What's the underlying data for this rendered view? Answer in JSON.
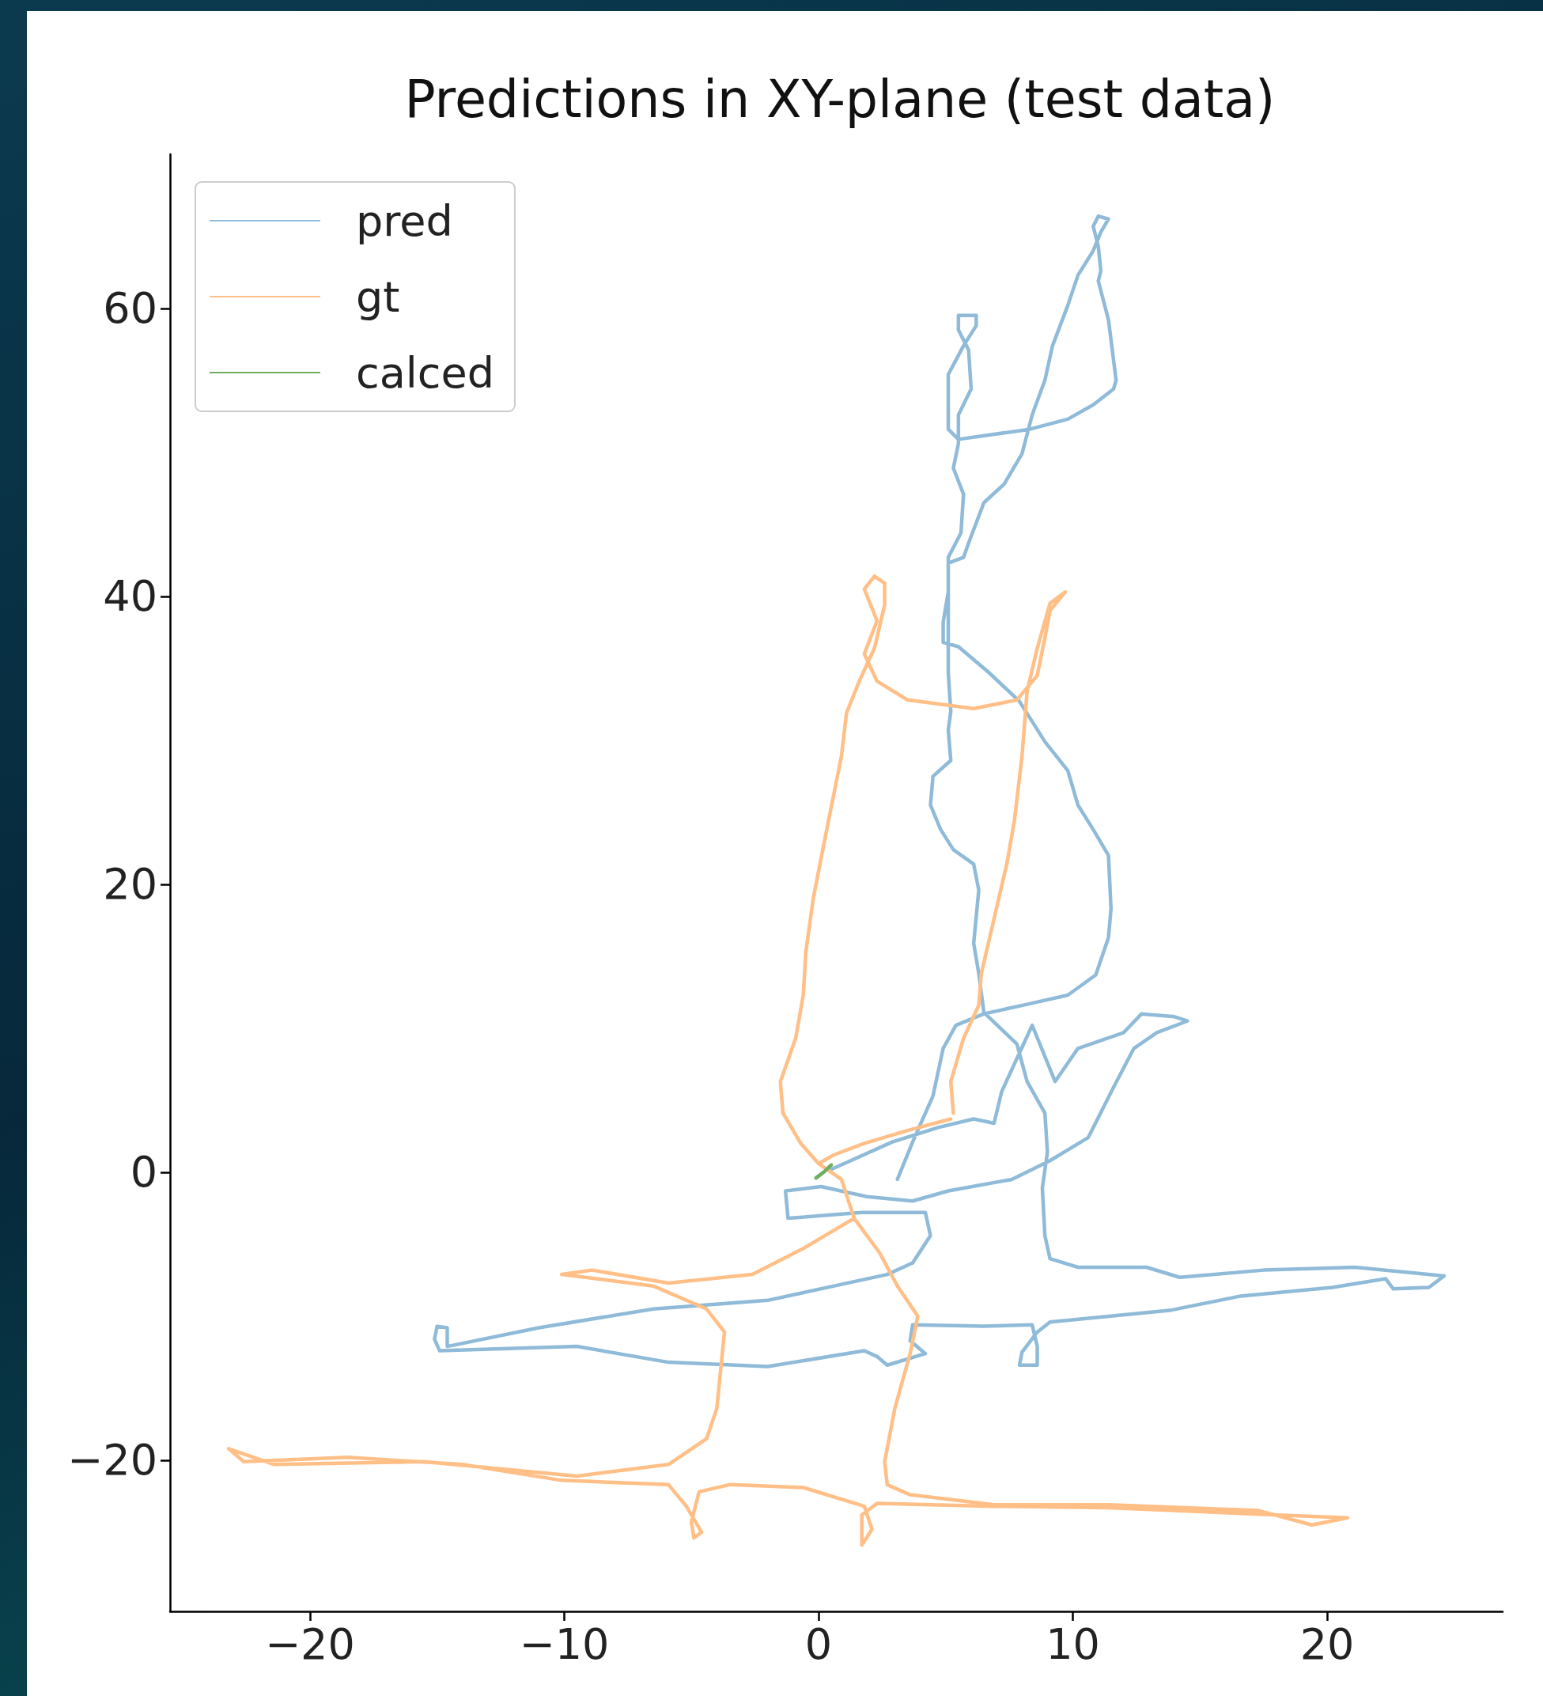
{
  "chart_data": {
    "type": "line",
    "title": "Predictions in XY-plane (test data)",
    "xlim": [
      -25.5,
      26.9
    ],
    "ylim": [
      -30.5,
      70.7
    ],
    "xticks": [
      {
        "value": -20,
        "label": "−20"
      },
      {
        "value": -10,
        "label": "−10"
      },
      0,
      10,
      20
    ],
    "yticks": [
      {
        "value": -20,
        "label": "−20"
      },
      0,
      20,
      40,
      60
    ],
    "legend": "top left",
    "series": [
      {
        "name": "pred",
        "color": "#8fbbd9",
        "x": [
          3.1,
          3.7,
          4.5,
          4.9,
          5.4,
          6.5,
          8.3,
          9.8,
          10.9,
          11.4,
          11.5,
          11.4,
          10.8,
          10.2,
          9.8,
          8.9,
          7.9,
          6.7,
          5.5,
          4.9,
          4.9,
          5.1,
          5.1,
          5.7,
          5.9,
          6.5,
          7.3,
          8.0,
          8.4,
          8.9,
          9.2,
          9.8,
          10.2,
          10.8,
          11.1,
          11.4,
          11.0,
          10.8,
          11.0,
          11.1,
          11.0,
          11.4,
          11.7,
          11.6,
          10.8,
          9.8,
          8.3,
          5.5,
          5.1,
          5.1,
          5.1,
          5.7,
          6.2,
          6.2,
          5.5,
          5.5,
          5.9,
          6.0,
          5.5,
          5.5,
          5.3,
          5.7,
          5.6,
          5.1,
          5.1,
          5.1,
          5.2,
          5.1,
          5.2,
          4.5,
          4.4,
          4.8,
          5.3,
          6.1,
          6.3,
          6.1,
          6.3,
          6.5,
          7.8,
          8.2,
          8.9,
          9.0,
          8.8,
          8.9,
          9.1,
          10.2,
          12.9,
          14.2,
          17.5,
          21.1,
          24.6,
          24.0,
          22.6,
          22.3,
          20.2,
          16.6,
          13.8,
          9.1,
          8.6,
          8.0,
          7.9,
          8.6,
          8.6,
          8.4,
          6.5,
          3.7,
          3.6,
          4.2,
          2.7,
          2.3,
          1.8,
          -2.0,
          -5.9,
          -9.5,
          -14.9,
          -15.1,
          -15.0,
          -14.6,
          -14.6,
          -11.0,
          -6.5,
          -2.0,
          2.7,
          3.7,
          4.4,
          4.2,
          1.7,
          -1.2,
          -1.3,
          0.1,
          1.9,
          3.7,
          5.1,
          7.6,
          9.1,
          10.6,
          11.6,
          12.4,
          13.3,
          14.5,
          14.0,
          12.7,
          12.0,
          10.2,
          9.3,
          8.4,
          7.8,
          7.2,
          6.9,
          6.1,
          4.7,
          2.9,
          0.5
        ],
        "values": [
          -0.5,
          2.1,
          5.3,
          8.6,
          10.2,
          11.0,
          11.7,
          12.3,
          13.7,
          16.3,
          18.3,
          22.0,
          23.8,
          25.5,
          27.9,
          29.9,
          32.7,
          34.7,
          36.5,
          36.8,
          38.2,
          40.3,
          42.3,
          42.7,
          43.7,
          46.5,
          47.8,
          49.9,
          52.6,
          55.0,
          57.4,
          60.2,
          62.3,
          64.0,
          65.3,
          66.2,
          66.4,
          65.7,
          64.3,
          62.6,
          61.9,
          59.2,
          55.0,
          54.4,
          53.3,
          52.3,
          51.6,
          50.9,
          51.6,
          53.3,
          55.4,
          57.4,
          58.8,
          59.5,
          59.5,
          58.5,
          57.1,
          54.4,
          52.6,
          50.6,
          48.9,
          47.1,
          44.4,
          42.7,
          40.3,
          34.7,
          32.0,
          30.7,
          28.6,
          27.5,
          25.5,
          23.8,
          22.4,
          21.4,
          19.6,
          15.9,
          13.8,
          11.1,
          8.9,
          6.3,
          4.1,
          1.4,
          -1.1,
          -4.4,
          -6.0,
          -6.6,
          -6.6,
          -7.3,
          -6.8,
          -6.6,
          -7.2,
          -8.0,
          -8.1,
          -7.4,
          -8.0,
          -8.6,
          -9.6,
          -10.4,
          -11.1,
          -12.5,
          -13.4,
          -13.4,
          -12.1,
          -10.6,
          -10.7,
          -10.6,
          -11.7,
          -12.6,
          -13.4,
          -12.8,
          -12.4,
          -13.5,
          -13.2,
          -12.1,
          -12.4,
          -11.6,
          -10.7,
          -10.8,
          -12.1,
          -10.8,
          -9.5,
          -8.9,
          -7.1,
          -6.3,
          -4.4,
          -2.8,
          -2.8,
          -3.2,
          -1.3,
          -1.0,
          -1.7,
          -2.0,
          -1.3,
          -0.5,
          0.8,
          2.4,
          5.9,
          8.6,
          9.7,
          10.5,
          10.8,
          11.0,
          9.7,
          8.6,
          6.3,
          10.2,
          7.9,
          5.6,
          3.4,
          3.7,
          3.1,
          2.1,
          0.2
        ]
      },
      {
        "name": "gt",
        "color": "#ffbf86",
        "x": [
          5.2,
          3.5,
          1.8,
          0.6,
          0.0,
          0.9,
          1.4,
          2.4,
          3.1,
          3.9,
          3.6,
          3.0,
          2.6,
          2.7,
          3.6,
          6.9,
          11.4,
          17.3,
          19.4,
          20.8,
          17.9,
          11.4,
          6.9,
          2.3,
          1.7,
          1.7,
          2.1,
          1.8,
          -0.6,
          -3.5,
          -4.7,
          -5.0,
          -4.9,
          -4.6,
          -5.2,
          -5.9,
          -10.1,
          -14.0,
          -18.5,
          -22.6,
          -23.2,
          -21.4,
          -15.5,
          -9.5,
          -5.9,
          -4.4,
          -4.0,
          -3.7,
          -4.4,
          -6.5,
          -10.1,
          -8.9,
          -5.9,
          -2.6,
          -0.6,
          1.4,
          0.9,
          0.0,
          -0.7,
          -1.4,
          -1.5,
          -0.9,
          -0.6,
          -0.5,
          -0.2,
          0.3,
          0.9,
          1.1,
          1.6,
          2.2,
          2.6,
          2.6,
          2.2,
          1.8,
          2.3,
          1.8,
          2.3,
          3.5,
          6.1,
          7.8,
          8.6,
          8.9,
          9.1,
          9.7,
          9.1,
          8.6,
          8.2,
          8.0,
          7.7,
          7.4,
          6.9,
          6.4,
          6.3,
          5.7,
          5.2,
          5.3
        ],
        "values": [
          3.7,
          2.9,
          2.0,
          1.2,
          0.6,
          -0.5,
          -3.2,
          -5.6,
          -7.9,
          -10.0,
          -12.6,
          -16.4,
          -20.1,
          -21.7,
          -22.4,
          -23.1,
          -23.1,
          -23.5,
          -24.5,
          -24.0,
          -23.8,
          -23.3,
          -23.2,
          -23.0,
          -23.8,
          -25.9,
          -24.8,
          -23.2,
          -21.9,
          -21.7,
          -22.2,
          -24.3,
          -25.4,
          -25.0,
          -23.2,
          -21.7,
          -21.4,
          -20.3,
          -19.8,
          -20.1,
          -19.2,
          -20.3,
          -20.1,
          -21.1,
          -20.3,
          -18.5,
          -16.4,
          -11.1,
          -9.5,
          -7.9,
          -7.1,
          -6.8,
          -7.7,
          -7.1,
          -5.3,
          -3.2,
          -0.5,
          0.6,
          2.0,
          4.1,
          6.3,
          9.3,
          12.3,
          15.3,
          19.1,
          23.6,
          28.9,
          31.9,
          34.1,
          36.4,
          39.4,
          40.9,
          41.4,
          40.5,
          38.3,
          36.0,
          34.1,
          32.8,
          32.2,
          32.8,
          34.5,
          37.1,
          39.0,
          40.3,
          39.5,
          36.4,
          33.4,
          28.9,
          24.4,
          21.4,
          17.6,
          13.8,
          11.6,
          9.3,
          6.3,
          4.1
        ]
      },
      {
        "name": "calced",
        "color": "#6fae5f",
        "x": [
          -0.1,
          0.2,
          0.5
        ],
        "values": [
          -0.4,
          0.0,
          0.5
        ]
      }
    ]
  }
}
